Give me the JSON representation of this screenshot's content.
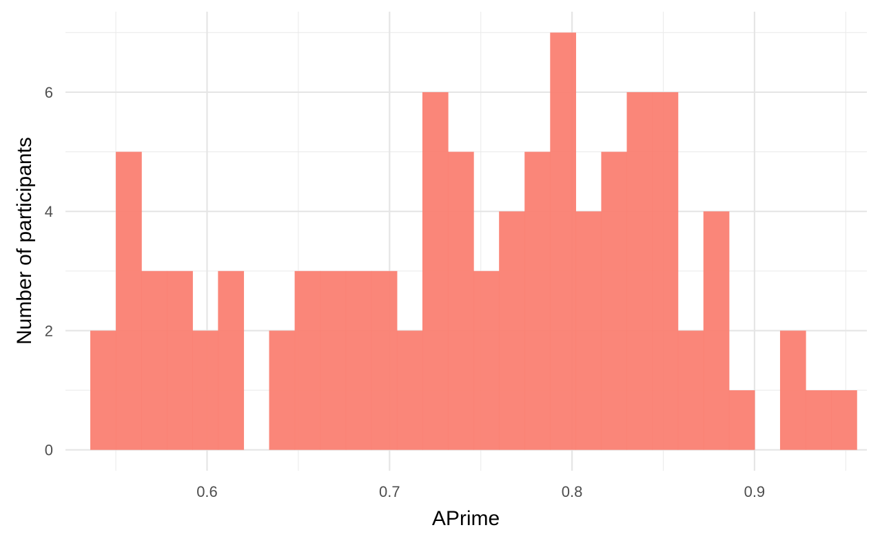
{
  "chart_data": {
    "type": "bar",
    "subtype": "histogram",
    "xlabel": "APrime",
    "ylabel": "Number of participants",
    "xlim": [
      0.5224,
      0.9616
    ],
    "ylim": [
      -0.35,
      7.35
    ],
    "x_ticks": [
      0.6,
      0.7,
      0.8,
      0.9
    ],
    "x_tick_labels": [
      "0.6",
      "0.7",
      "0.8",
      "0.9"
    ],
    "y_ticks": [
      0,
      2,
      4,
      6
    ],
    "y_tick_labels": [
      "0",
      "2",
      "4",
      "6"
    ],
    "grid": true,
    "bar_color": "#fa7f72",
    "bin_width": 0.014,
    "bin_starts": [
      0.536,
      0.55,
      0.564,
      0.578,
      0.592,
      0.606,
      0.62,
      0.634,
      0.648,
      0.662,
      0.676,
      0.69,
      0.704,
      0.718,
      0.732,
      0.746,
      0.76,
      0.774,
      0.788,
      0.802,
      0.816,
      0.83,
      0.844,
      0.858,
      0.872,
      0.886,
      0.9,
      0.914,
      0.928,
      0.942
    ],
    "counts": [
      2,
      5,
      3,
      3,
      2,
      3,
      0,
      2,
      3,
      3,
      3,
      3,
      2,
      6,
      5,
      3,
      4,
      5,
      7,
      4,
      5,
      6,
      6,
      2,
      4,
      1,
      0,
      2,
      1,
      1
    ]
  }
}
